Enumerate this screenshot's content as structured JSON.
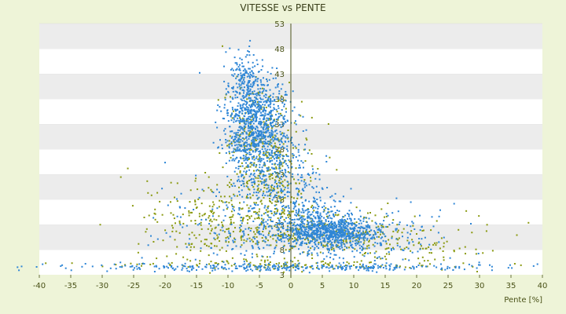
{
  "chart_data": {
    "type": "scatter",
    "title": "VITESSE vs PENTE",
    "xlabel": "Pente [%]",
    "ylabel": "",
    "xlim": [
      -40,
      40
    ],
    "ylim": [
      3,
      53
    ],
    "x_ticks": [
      -40,
      -35,
      -30,
      -25,
      -20,
      -15,
      -10,
      -5,
      0,
      5,
      10,
      15,
      20,
      25,
      30,
      35,
      40
    ],
    "y_ticks": [
      3,
      8,
      13,
      18,
      23,
      28,
      33,
      38,
      43,
      48,
      53
    ],
    "grid": "horizontal alternating bands",
    "legend": "none",
    "series": [
      {
        "color": "#2e86d6",
        "clusters": [
          {
            "x": -5.5,
            "y": 33,
            "sx": 2.5,
            "sy": 5.0,
            "n": 900
          },
          {
            "x": -7.5,
            "y": 42,
            "sx": 1.5,
            "sy": 2.5,
            "n": 120
          },
          {
            "x": -3,
            "y": 24,
            "sx": 3.5,
            "sy": 5.0,
            "n": 250
          },
          {
            "x": 6.5,
            "y": 11.5,
            "sx": 4.0,
            "sy": 1.5,
            "n": 700
          },
          {
            "x": 3,
            "y": 15,
            "sx": 3.0,
            "sy": 3.0,
            "n": 200
          },
          {
            "x": -7,
            "y": 13,
            "sx": 7.0,
            "sy": 5.0,
            "n": 250
          },
          {
            "x": 10,
            "y": 10,
            "sx": 8.0,
            "sy": 2.5,
            "n": 200
          },
          {
            "x": 0,
            "y": 4.5,
            "sx": 18.0,
            "sy": 0.4,
            "n": 320
          }
        ]
      },
      {
        "color": "#8a9a10",
        "clusters": [
          {
            "x": -5,
            "y": 30,
            "sx": 3.0,
            "sy": 6.0,
            "n": 250
          },
          {
            "x": -10,
            "y": 13,
            "sx": 7.0,
            "sy": 5.0,
            "n": 350
          },
          {
            "x": -2,
            "y": 20,
            "sx": 2.5,
            "sy": 6.0,
            "n": 150
          },
          {
            "x": 8,
            "y": 11,
            "sx": 7.0,
            "sy": 2.5,
            "n": 250
          },
          {
            "x": 22,
            "y": 9,
            "sx": 7.0,
            "sy": 2.5,
            "n": 60
          },
          {
            "x": 0,
            "y": 5,
            "sx": 16.0,
            "sy": 0.5,
            "n": 120
          }
        ]
      }
    ]
  }
}
